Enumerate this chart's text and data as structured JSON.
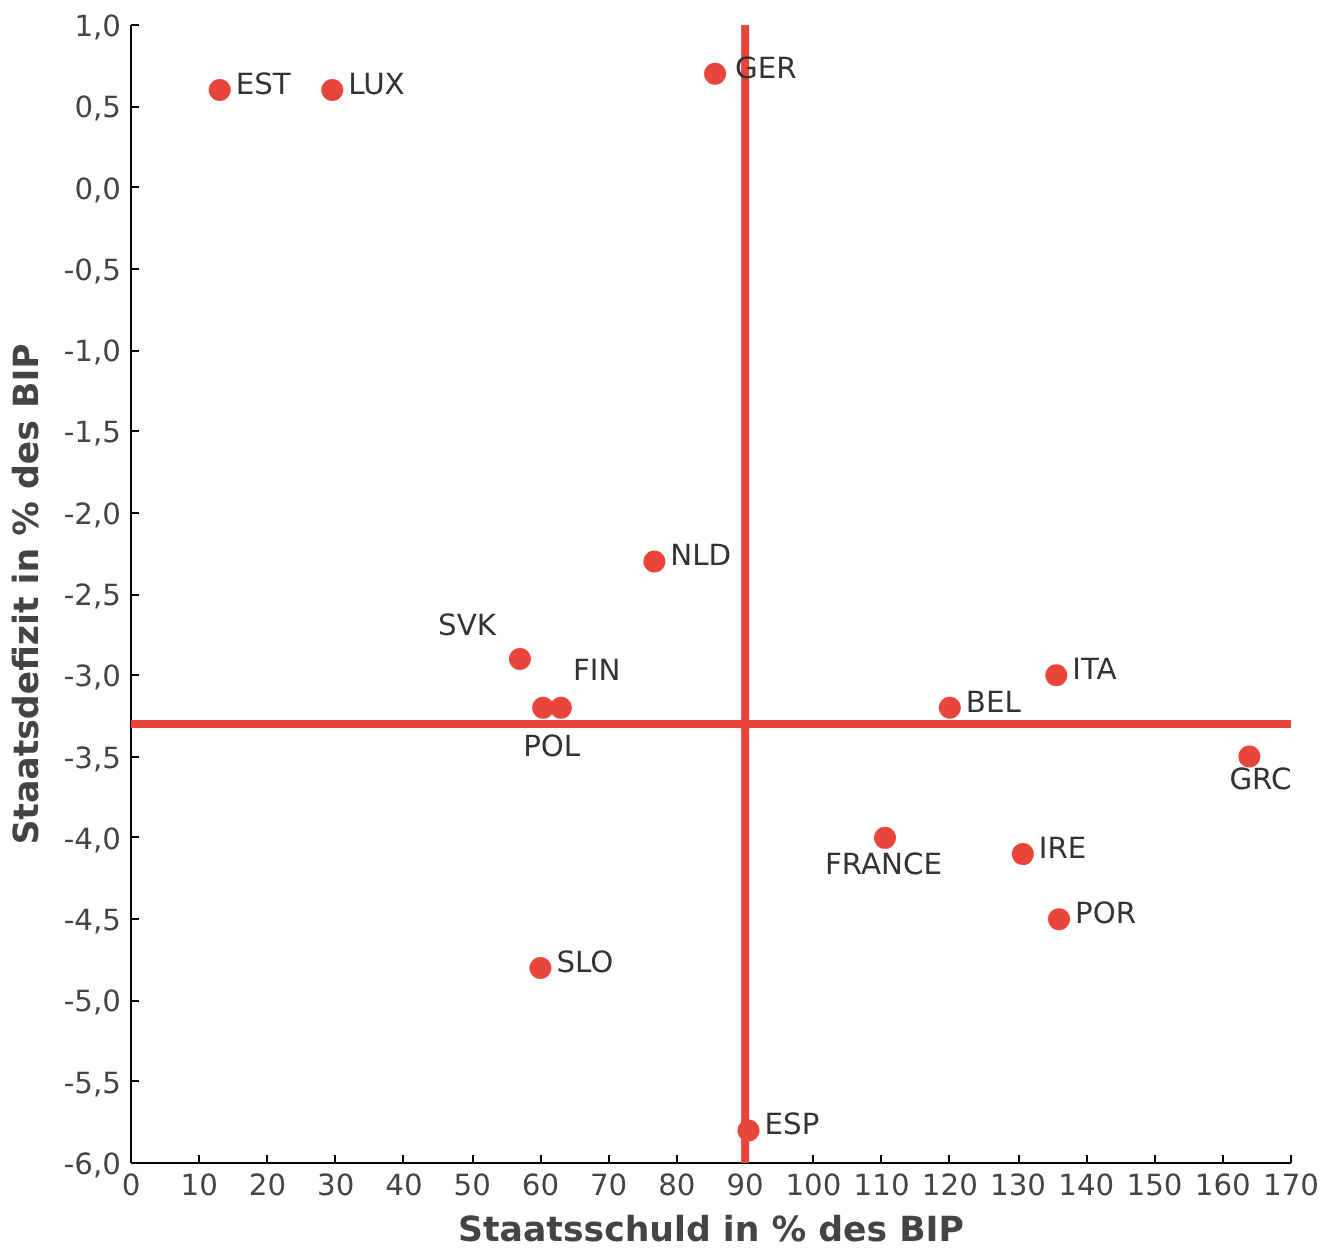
{
  "chart_data": {
    "type": "scatter",
    "xlabel": "Staatsschuld in % des BIP",
    "ylabel": "Staatsdefizit in % des BIP",
    "x": [
      13,
      29.5,
      85.6,
      76.7,
      57,
      63,
      60.4,
      135.6,
      120,
      163.9,
      110.5,
      130.7,
      136,
      60,
      90.5
    ],
    "series": [
      {
        "color": "#e8463a",
        "values": [
          0.6,
          0.6,
          0.7,
          -2.3,
          -2.9,
          -3.2,
          -3.2,
          -3.0,
          -3.2,
          -3.5,
          -4.0,
          -4.1,
          -4.5,
          -4.8,
          -5.8
        ]
      }
    ],
    "annotations": [
      {
        "text": "EST",
        "x": 13,
        "y": 0.6
      },
      {
        "text": "LUX",
        "x": 29.5,
        "y": 0.6
      },
      {
        "text": "GER",
        "x": 85.6,
        "y": 0.7
      },
      {
        "text": "NLD",
        "x": 76.7,
        "y": -2.3
      },
      {
        "text": "SVK",
        "x": 57,
        "y": -2.9
      },
      {
        "text": "FIN",
        "x": 63,
        "y": -3.2
      },
      {
        "text": "POL",
        "x": 60.4,
        "y": -3.2
      },
      {
        "text": "ITA",
        "x": 135.6,
        "y": -3.0
      },
      {
        "text": "BEL",
        "x": 120,
        "y": -3.2
      },
      {
        "text": "GRC",
        "x": 163.9,
        "y": -3.5
      },
      {
        "text": "FRANCE",
        "x": 110.5,
        "y": -4.0
      },
      {
        "text": "IRE",
        "x": 130.7,
        "y": -4.1
      },
      {
        "text": "POR",
        "x": 136,
        "y": -4.5
      },
      {
        "text": "SLO",
        "x": 60,
        "y": -4.8
      },
      {
        "text": "ESP",
        "x": 90.5,
        "y": -5.8
      }
    ],
    "ref_lines": [
      {
        "axis": "x",
        "value": 90,
        "color": "#e8463a"
      },
      {
        "axis": "y",
        "value": -3.3,
        "color": "#e8463a"
      }
    ],
    "xlim": [
      0,
      170
    ],
    "xticks": [
      0,
      10,
      20,
      30,
      40,
      50,
      60,
      70,
      80,
      90,
      100,
      110,
      120,
      130,
      140,
      150,
      160,
      170
    ],
    "ylim": [
      -6,
      1
    ],
    "yticks": [
      {
        "value": 1,
        "label": "1,0"
      },
      {
        "value": 0.5,
        "label": "0,5"
      },
      {
        "value": 0,
        "label": "0,0"
      },
      {
        "value": -0.5,
        "label": "-0,5"
      },
      {
        "value": -1,
        "label": "-1,0"
      },
      {
        "value": -1.5,
        "label": "-1,5"
      },
      {
        "value": -2,
        "label": "-2,0"
      },
      {
        "value": -2.5,
        "label": "-2,5"
      },
      {
        "value": -3,
        "label": "-3,0"
      },
      {
        "value": -3.5,
        "label": "-3,5"
      },
      {
        "value": -4,
        "label": "-4,0"
      },
      {
        "value": -4.5,
        "label": "-4,5"
      },
      {
        "value": -5,
        "label": "-5,0"
      },
      {
        "value": -5.5,
        "label": "-5,5"
      },
      {
        "value": -6,
        "label": "-6,0"
      }
    ],
    "grid": false,
    "marker": "circle"
  }
}
